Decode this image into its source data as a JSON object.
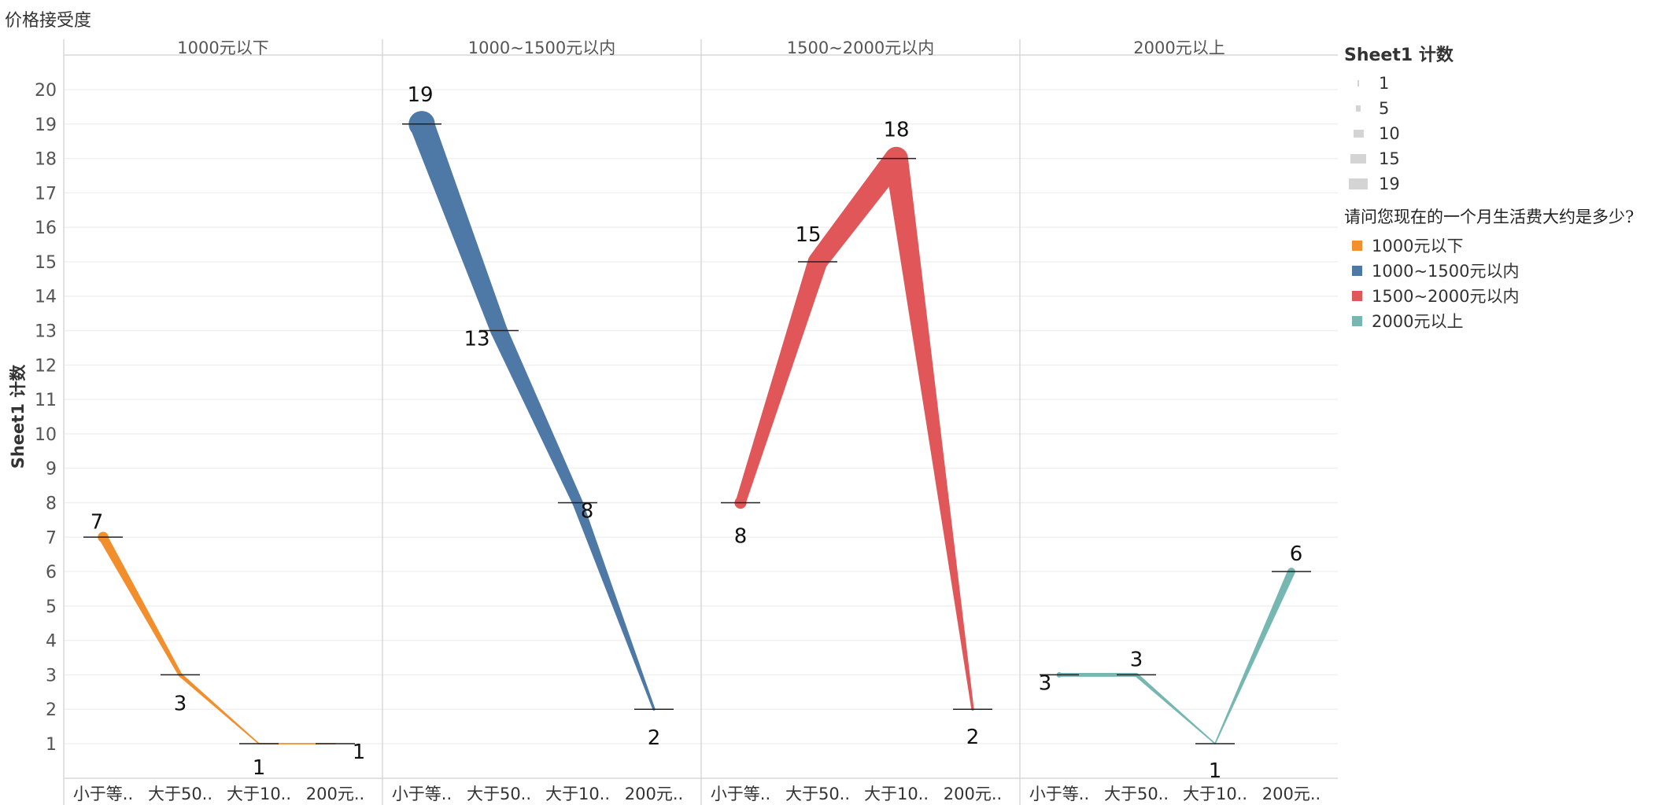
{
  "title": "价格接受度",
  "chart_data": {
    "type": "line",
    "title": "价格接受度",
    "ylabel": "Sheet1 计数",
    "ylim": [
      0,
      20
    ],
    "yticks": [
      1,
      2,
      3,
      4,
      5,
      6,
      7,
      8,
      9,
      10,
      11,
      12,
      13,
      14,
      15,
      16,
      17,
      18,
      19,
      20
    ],
    "categories": [
      "小于等..",
      "大于50..",
      "大于10..",
      "200元.."
    ],
    "panels": [
      {
        "name": "1000元以下",
        "color": "#f28e2b",
        "values": [
          7,
          3,
          1,
          1
        ]
      },
      {
        "name": "1000~1500元以内",
        "color": "#4e79a7",
        "values": [
          19,
          13,
          8,
          2
        ]
      },
      {
        "name": "1500~2000元以内",
        "color": "#e15759",
        "values": [
          8,
          15,
          18,
          2
        ]
      },
      {
        "name": "2000元以上",
        "color": "#76b7b2",
        "values": [
          3,
          3,
          1,
          6
        ]
      }
    ],
    "grid": true
  },
  "legend": {
    "size_title": "Sheet1 计数",
    "size_items": [
      {
        "label": "1",
        "value": 1
      },
      {
        "label": "5",
        "value": 5
      },
      {
        "label": "10",
        "value": 10
      },
      {
        "label": "15",
        "value": 15
      },
      {
        "label": "19",
        "value": 19
      }
    ],
    "color_title": "请问您现在的一个月生活费大约是多少?",
    "color_items": [
      {
        "label": "1000元以下",
        "color": "#f28e2b"
      },
      {
        "label": "1000~1500元以内",
        "color": "#4e79a7"
      },
      {
        "label": "1500~2000元以内",
        "color": "#e15759"
      },
      {
        "label": "2000元以上",
        "color": "#76b7b2"
      }
    ]
  }
}
